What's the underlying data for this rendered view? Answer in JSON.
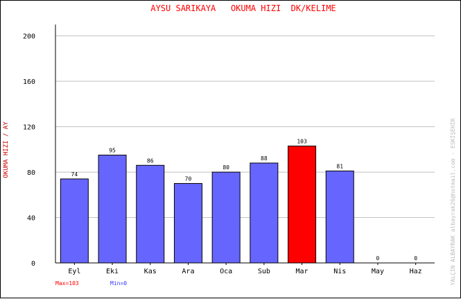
{
  "chart_data": {
    "type": "bar",
    "title": "AYSU SARIKAYA   OKUMA HIZI  DK/KELIME",
    "ylabel": "OKUMA HIZI / AY",
    "xlabel": "",
    "categories": [
      "Eyl",
      "Eki",
      "Kas",
      "Ara",
      "Oca",
      "Sub",
      "Mar",
      "Nis",
      "May",
      "Haz"
    ],
    "values": [
      74,
      95,
      86,
      70,
      80,
      88,
      103,
      81,
      0,
      0
    ],
    "ylim": [
      0,
      220
    ],
    "yticks": [
      0,
      40,
      80,
      120,
      160,
      200
    ],
    "grid": true,
    "bar_color": "#6666ff",
    "max_bar_color": "#ff0000",
    "max_label": "Max=103",
    "min_label": "Min=0",
    "max_label_color": "#ff0000",
    "min_label_color": "#3333ff",
    "title_color": "#ff0000",
    "ylabel_color": "#cc0000",
    "side_credit": "YALÇIN ALBAYRAK   albayrak26@hotmail.com - ESKİŞEHİR",
    "side_credit_color": "#bbbbbb"
  }
}
